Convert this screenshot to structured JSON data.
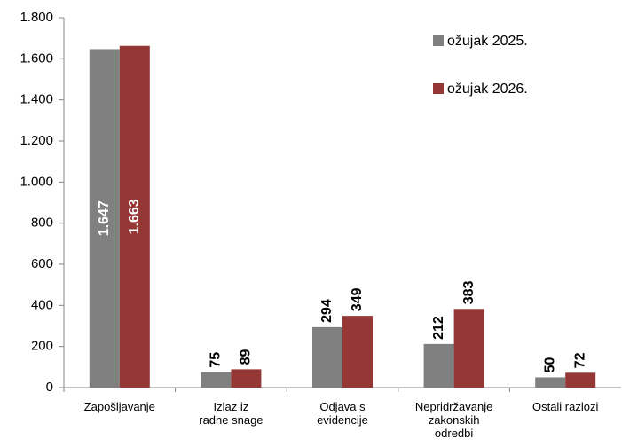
{
  "chart_data": {
    "type": "bar",
    "categories": [
      "Zapošljavanje",
      "Izlaz iz\nradne snage",
      "Odjava s\nevidencije",
      "Nepridržavanje\nzakonskih\nodredbi",
      "Ostali razlozi"
    ],
    "series": [
      {
        "name": "ožujak 2025.",
        "color": "#808080",
        "values": [
          1647,
          75,
          294,
          212,
          50
        ],
        "value_labels": [
          "1.647",
          "75",
          "294",
          "212",
          "50"
        ]
      },
      {
        "name": "ožujak 2026.",
        "color": "#953735",
        "values": [
          1663,
          89,
          349,
          383,
          72
        ],
        "value_labels": [
          "1.663",
          "89",
          "349",
          "383",
          "72"
        ]
      }
    ],
    "ylim": [
      0,
      1800
    ],
    "yticks": [
      0,
      200,
      400,
      600,
      800,
      {
        "value": 1000,
        "label": "1.000"
      },
      {
        "value": 1200,
        "label": "1.200"
      },
      {
        "value": 1400,
        "label": "1.400"
      },
      {
        "value": 1600,
        "label": "1.600"
      },
      {
        "value": 1800,
        "label": "1.800"
      }
    ],
    "grid": false,
    "legend": "top-right"
  }
}
